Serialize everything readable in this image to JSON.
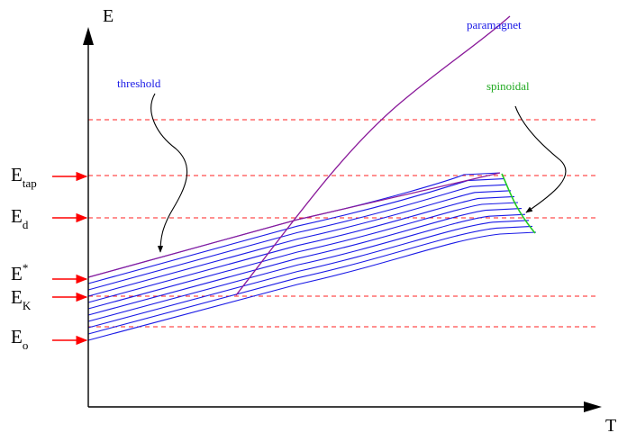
{
  "axes": {
    "x_label": "T",
    "y_label": "E"
  },
  "energy_levels": [
    {
      "key": "tap",
      "base": "E",
      "sub": "tap"
    },
    {
      "key": "d",
      "base": "E",
      "sub": "d"
    },
    {
      "key": "star",
      "base": "E",
      "sup": "*"
    },
    {
      "key": "kappa",
      "base": "E",
      "sub": "K"
    },
    {
      "key": "zero",
      "base": "E",
      "sub": "o"
    }
  ],
  "annotations": {
    "threshold": "threshold",
    "paramagnet": "paramagnet",
    "spinoidal": "spinoidal"
  },
  "colors": {
    "axis": "#000000",
    "dashed_level": "#ff2020",
    "arrow": "#ff0000",
    "state_curves": "#1a1ae6",
    "paramagnet_curve": "#8a1a9a",
    "spinoidal_curve": "#22cc22",
    "text_blue": "#1a1ae6",
    "text_green": "#22aa22"
  }
}
